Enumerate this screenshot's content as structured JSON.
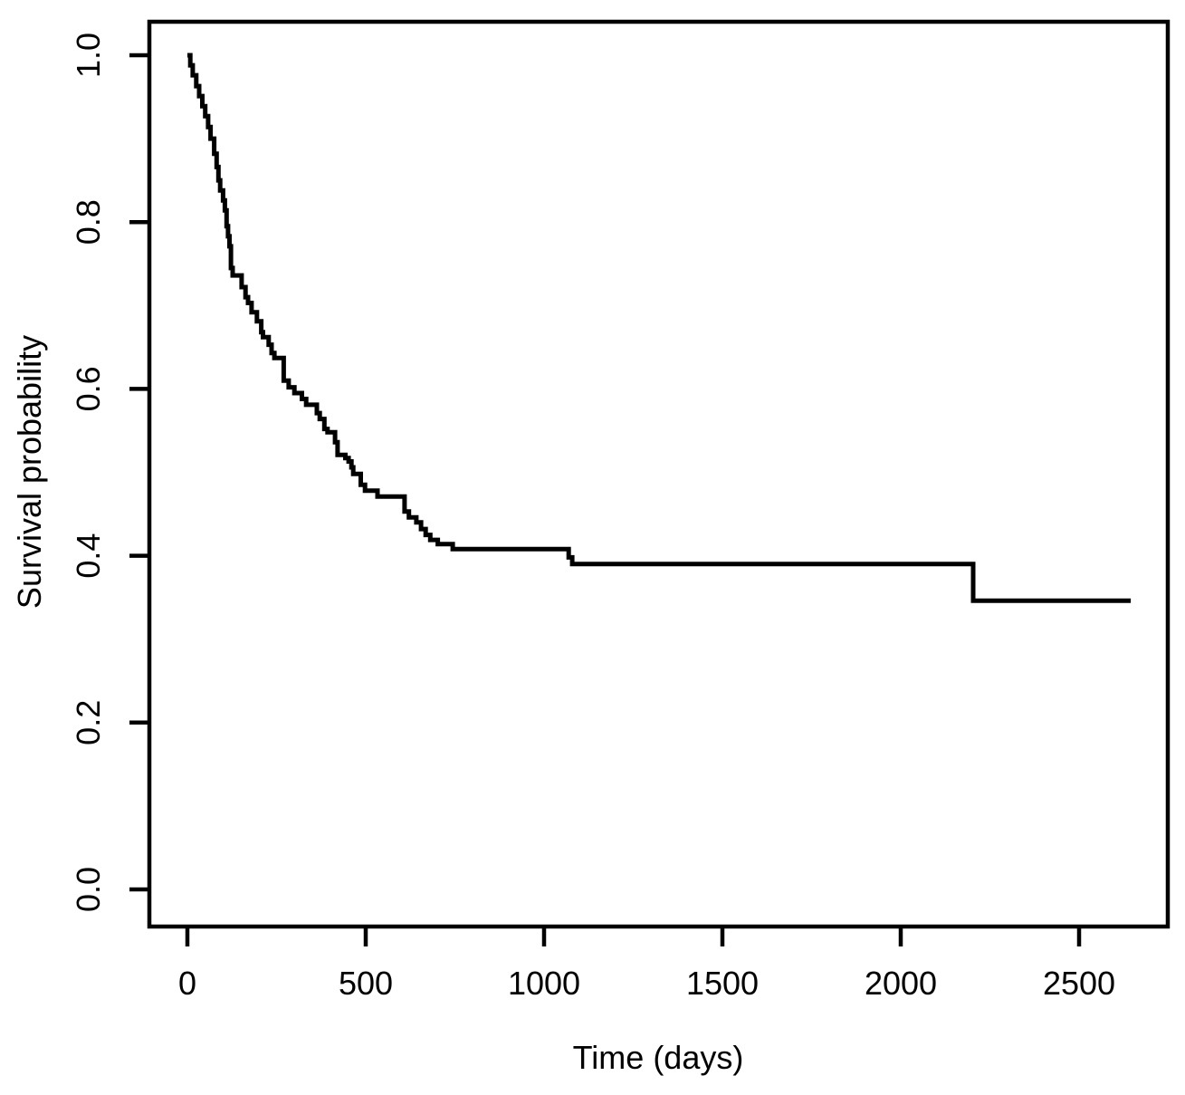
{
  "chart_data": {
    "type": "line",
    "subtype": "kaplan-meier-step",
    "title": "",
    "xlabel": "Time (days)",
    "ylabel": "Survival probability",
    "xlim": [
      0,
      2650
    ],
    "ylim": [
      0.0,
      1.0
    ],
    "grid": false,
    "legend_position": "none",
    "line_color": "#000000",
    "background_color": "#ffffff",
    "x_ticks": {
      "values": [
        0,
        500,
        1000,
        1500,
        2000,
        2500
      ],
      "labels": [
        "0",
        "500",
        "1000",
        "1500",
        "2000",
        "2500"
      ]
    },
    "y_ticks": {
      "values": [
        0.0,
        0.2,
        0.4,
        0.6,
        0.8,
        1.0
      ],
      "labels": [
        "0.0",
        "0.2",
        "0.4",
        "0.6",
        "0.8",
        "1.0"
      ]
    },
    "steps": [
      [
        0,
        1.0
      ],
      [
        8,
        0.988
      ],
      [
        15,
        0.976
      ],
      [
        25,
        0.963
      ],
      [
        33,
        0.951
      ],
      [
        42,
        0.939
      ],
      [
        50,
        0.927
      ],
      [
        58,
        0.914
      ],
      [
        65,
        0.9
      ],
      [
        75,
        0.882
      ],
      [
        82,
        0.866
      ],
      [
        87,
        0.85
      ],
      [
        92,
        0.838
      ],
      [
        100,
        0.826
      ],
      [
        105,
        0.814
      ],
      [
        110,
        0.795
      ],
      [
        114,
        0.783
      ],
      [
        118,
        0.771
      ],
      [
        122,
        0.745
      ],
      [
        127,
        0.736
      ],
      [
        152,
        0.722
      ],
      [
        163,
        0.71
      ],
      [
        170,
        0.703
      ],
      [
        180,
        0.692
      ],
      [
        195,
        0.681
      ],
      [
        207,
        0.668
      ],
      [
        212,
        0.662
      ],
      [
        228,
        0.653
      ],
      [
        236,
        0.643
      ],
      [
        244,
        0.637
      ],
      [
        270,
        0.61
      ],
      [
        284,
        0.602
      ],
      [
        300,
        0.595
      ],
      [
        321,
        0.588
      ],
      [
        333,
        0.581
      ],
      [
        363,
        0.571
      ],
      [
        371,
        0.564
      ],
      [
        384,
        0.552
      ],
      [
        393,
        0.548
      ],
      [
        414,
        0.536
      ],
      [
        421,
        0.521
      ],
      [
        443,
        0.517
      ],
      [
        452,
        0.513
      ],
      [
        460,
        0.506
      ],
      [
        465,
        0.498
      ],
      [
        486,
        0.485
      ],
      [
        498,
        0.478
      ],
      [
        533,
        0.471
      ],
      [
        609,
        0.453
      ],
      [
        621,
        0.446
      ],
      [
        642,
        0.44
      ],
      [
        655,
        0.432
      ],
      [
        668,
        0.425
      ],
      [
        681,
        0.419
      ],
      [
        702,
        0.414
      ],
      [
        744,
        0.408
      ],
      [
        1069,
        0.398
      ],
      [
        1079,
        0.39
      ],
      [
        2203,
        0.346
      ]
    ],
    "end_time": 2645
  }
}
